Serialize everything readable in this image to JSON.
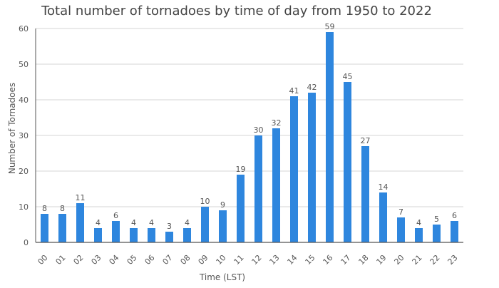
{
  "chart_data": {
    "type": "bar",
    "title": "Total number of tornadoes by time of day from 1950 to 2022",
    "xlabel": "Time (LST)",
    "ylabel": "Number of Tornadoes",
    "ylim": [
      0,
      60
    ],
    "yticks": [
      0,
      10,
      20,
      30,
      40,
      50,
      60
    ],
    "grid": true,
    "bar_color": "#2e86de",
    "categories": [
      "00",
      "01",
      "02",
      "03",
      "04",
      "05",
      "06",
      "07",
      "08",
      "09",
      "10",
      "11",
      "12",
      "13",
      "14",
      "15",
      "16",
      "17",
      "18",
      "19",
      "20",
      "21",
      "22",
      "23"
    ],
    "values": [
      8,
      8,
      11,
      4,
      6,
      4,
      4,
      3,
      4,
      10,
      9,
      19,
      30,
      32,
      41,
      42,
      59,
      45,
      27,
      14,
      7,
      4,
      5,
      6
    ]
  }
}
